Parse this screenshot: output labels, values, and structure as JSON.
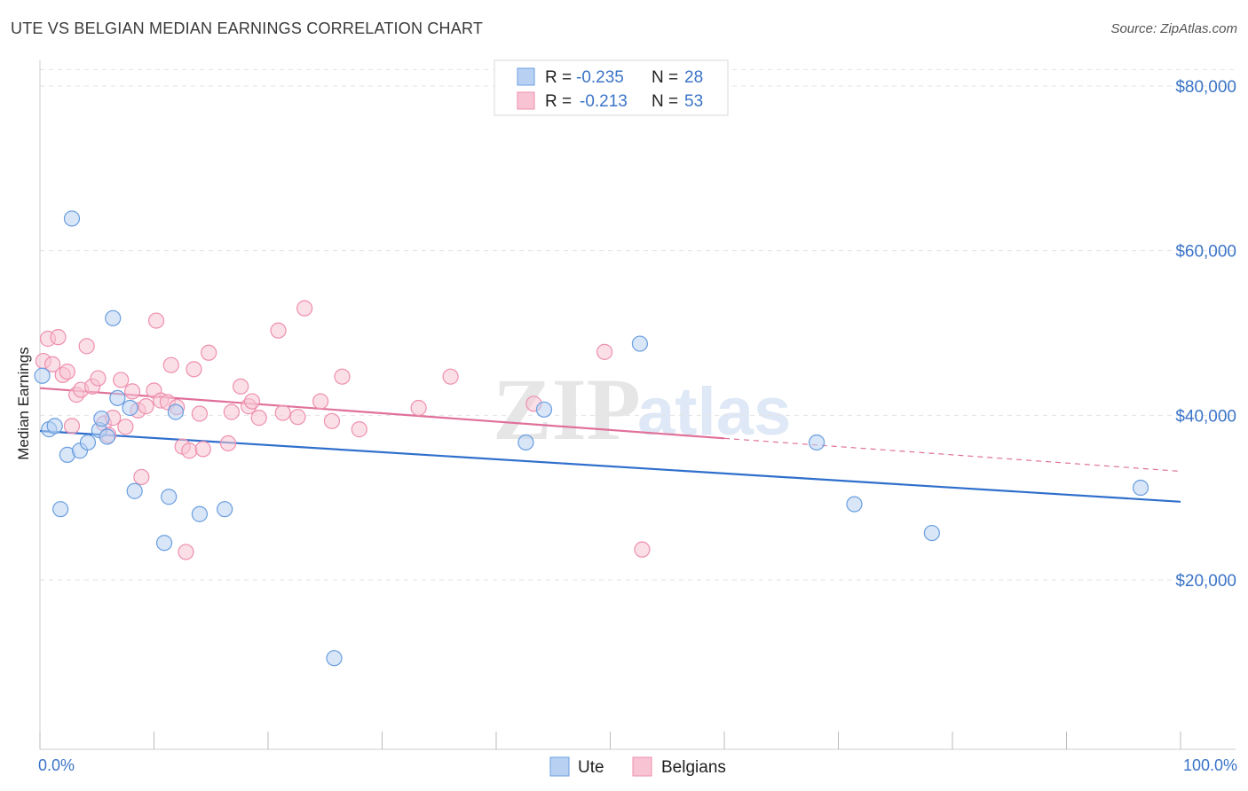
{
  "title": "UTE VS BELGIAN MEDIAN EARNINGS CORRELATION CHART",
  "source": "Source: ZipAtlas.com",
  "watermark": {
    "zip": "ZIP",
    "atlas": "atlas"
  },
  "colors": {
    "ute_fill": "#b8d1f3",
    "ute_stroke": "#6a9ee0",
    "ute_line": "#2f6fcc",
    "bel_fill": "#f8c4d3",
    "bel_stroke": "#ee8fae",
    "bel_line": "#e0709a",
    "axis_text": "#3b74c7",
    "grid": "#e3e3e3"
  },
  "legend": {
    "ute": {
      "r_label": "R =",
      "r_value": "-0.235",
      "n_label": "N =",
      "n_value": "28"
    },
    "bel": {
      "r_label": "R =",
      "r_value": "-0.213",
      "n_label": "N =",
      "n_value": "53"
    }
  },
  "bottom_legend": {
    "ute": "Ute",
    "bel": "Belgians"
  },
  "chart_data": {
    "type": "scatter",
    "title": "UTE VS BELGIAN MEDIAN EARNINGS CORRELATION CHART",
    "ylabel": "Median Earnings",
    "xlabel": "",
    "xlim": [
      0,
      100
    ],
    "ylim": [
      0,
      82000
    ],
    "x_tick_labels": {
      "min": "0.0%",
      "max": "100.0%"
    },
    "y_ticks": [
      {
        "value": 20000,
        "label": "$20,000"
      },
      {
        "value": 40000,
        "label": "$40,000"
      },
      {
        "value": 60000,
        "label": "$60,000"
      },
      {
        "value": 80000,
        "label": "$80,000"
      }
    ],
    "series": [
      {
        "name": "Ute",
        "r": -0.235,
        "n": 28,
        "points": [
          [
            0.2,
            44800
          ],
          [
            0.8,
            38300
          ],
          [
            1.3,
            38700
          ],
          [
            1.8,
            28600
          ],
          [
            2.4,
            35200
          ],
          [
            2.8,
            63900
          ],
          [
            3.5,
            35700
          ],
          [
            4.2,
            36700
          ],
          [
            5.2,
            38200
          ],
          [
            5.4,
            39600
          ],
          [
            5.9,
            37400
          ],
          [
            6.4,
            51800
          ],
          [
            6.8,
            42100
          ],
          [
            7.9,
            40900
          ],
          [
            8.3,
            30800
          ],
          [
            10.9,
            24500
          ],
          [
            11.3,
            30100
          ],
          [
            11.9,
            40400
          ],
          [
            14.0,
            28000
          ],
          [
            16.2,
            28600
          ],
          [
            25.8,
            10500
          ],
          [
            42.6,
            36700
          ],
          [
            44.2,
            40700
          ],
          [
            52.6,
            48700
          ],
          [
            68.1,
            36700
          ],
          [
            71.4,
            29200
          ],
          [
            78.2,
            25700
          ],
          [
            96.5,
            31200
          ]
        ],
        "trend": {
          "x": [
            0,
            100
          ],
          "y": [
            38100,
            29500
          ],
          "dashed_extension": false
        }
      },
      {
        "name": "Belgians",
        "r": -0.213,
        "n": 53,
        "points": [
          [
            0.3,
            46600
          ],
          [
            0.7,
            49300
          ],
          [
            1.1,
            46200
          ],
          [
            1.6,
            49500
          ],
          [
            2.0,
            44900
          ],
          [
            2.4,
            45300
          ],
          [
            2.8,
            38700
          ],
          [
            3.2,
            42500
          ],
          [
            3.6,
            43100
          ],
          [
            4.1,
            48400
          ],
          [
            4.6,
            43500
          ],
          [
            5.1,
            44500
          ],
          [
            5.6,
            39000
          ],
          [
            6.0,
            37600
          ],
          [
            6.4,
            39700
          ],
          [
            7.1,
            44300
          ],
          [
            7.5,
            38600
          ],
          [
            8.1,
            42900
          ],
          [
            8.6,
            40600
          ],
          [
            8.9,
            32500
          ],
          [
            9.3,
            41100
          ],
          [
            10.0,
            43000
          ],
          [
            10.2,
            51500
          ],
          [
            10.6,
            41800
          ],
          [
            11.2,
            41600
          ],
          [
            11.5,
            46100
          ],
          [
            12.0,
            41000
          ],
          [
            12.5,
            36200
          ],
          [
            12.8,
            23400
          ],
          [
            13.1,
            35700
          ],
          [
            13.5,
            45600
          ],
          [
            14.0,
            40200
          ],
          [
            14.3,
            35900
          ],
          [
            14.8,
            47600
          ],
          [
            16.5,
            36600
          ],
          [
            16.8,
            40400
          ],
          [
            17.6,
            43500
          ],
          [
            18.3,
            41100
          ],
          [
            18.6,
            41700
          ],
          [
            19.2,
            39700
          ],
          [
            20.9,
            50300
          ],
          [
            21.3,
            40300
          ],
          [
            22.6,
            39800
          ],
          [
            23.2,
            53000
          ],
          [
            24.6,
            41700
          ],
          [
            25.6,
            39300
          ],
          [
            26.5,
            44700
          ],
          [
            28.0,
            38300
          ],
          [
            33.2,
            40900
          ],
          [
            36.0,
            44700
          ],
          [
            43.3,
            41400
          ],
          [
            49.5,
            47700
          ],
          [
            52.8,
            23700
          ]
        ],
        "trend": {
          "x": [
            0,
            60
          ],
          "y": [
            43300,
            37200
          ],
          "dashed_extension": true,
          "dash_to": {
            "x": 100,
            "y": 33200
          }
        }
      }
    ]
  }
}
